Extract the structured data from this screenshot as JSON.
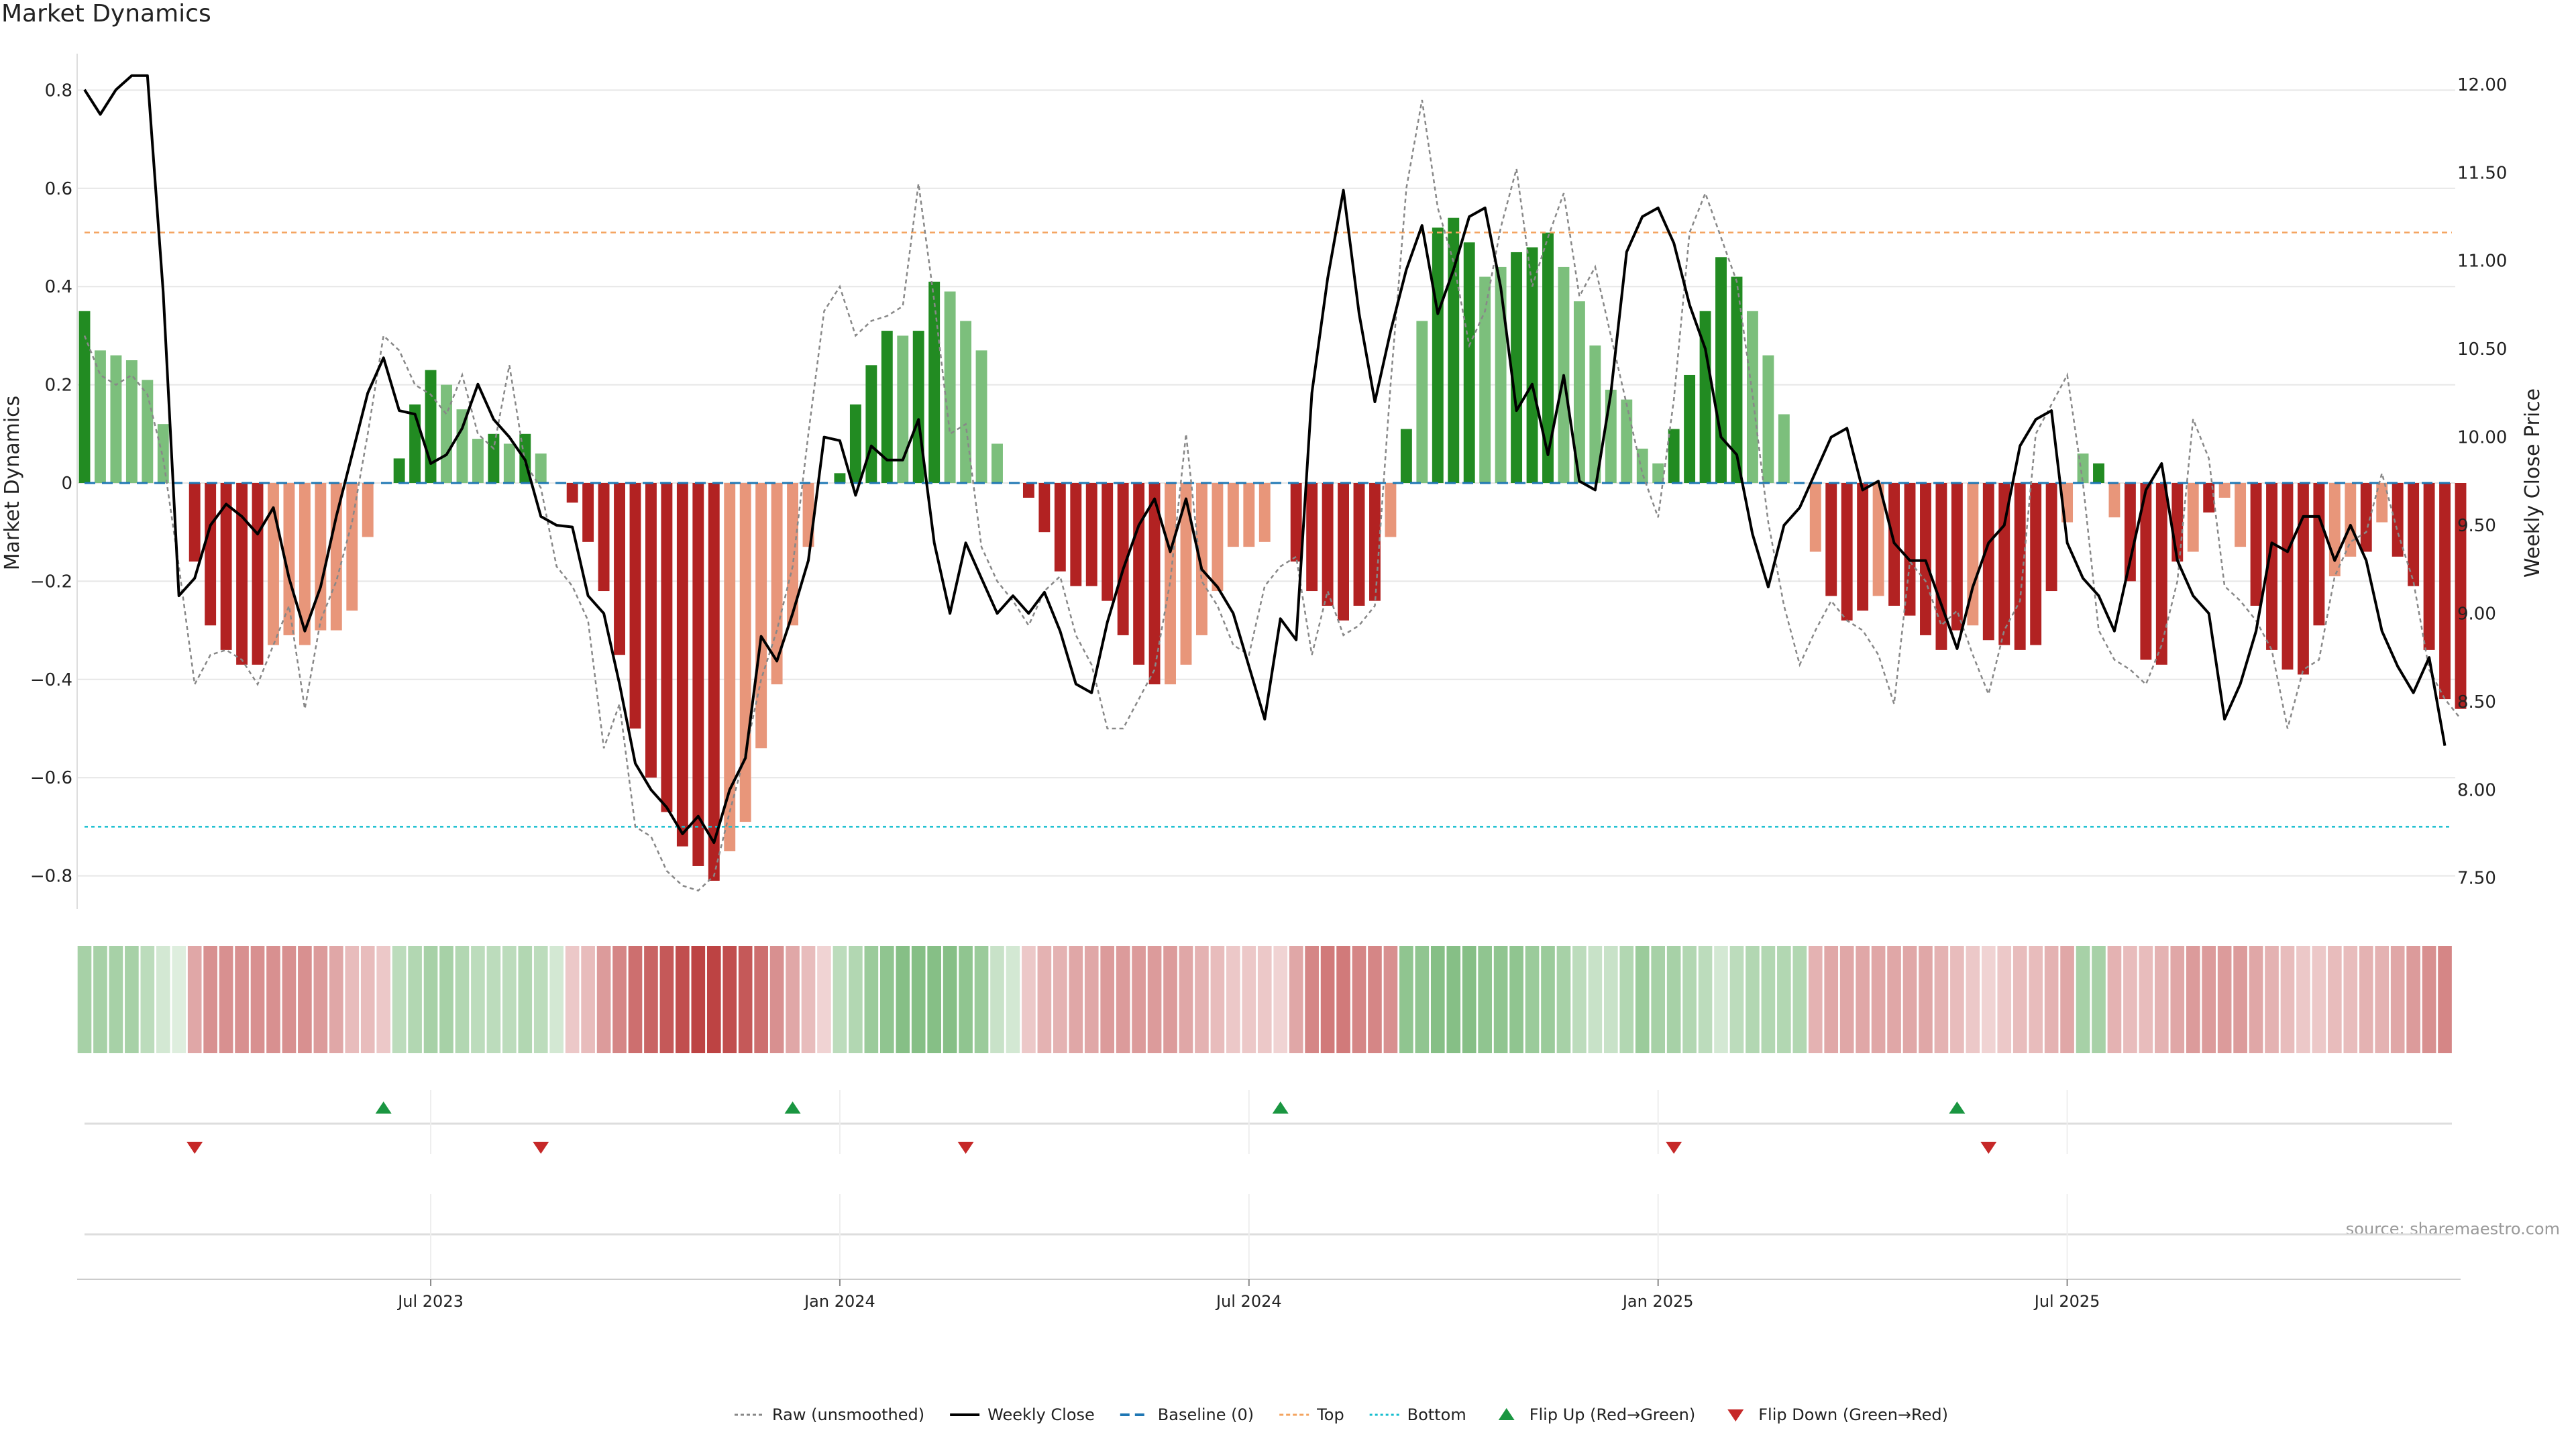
{
  "title": "Market Dynamics",
  "source": "source: sharemaestro.com",
  "colors": {
    "strong_green": "#228b22",
    "light_green": "#7cbf7c",
    "strong_red": "#b22222",
    "light_red": "#e8967a",
    "close_line": "#000000",
    "raw_line": "#888888",
    "baseline": "#1f77b4",
    "top": "#f4a460",
    "bottom": "#17becf",
    "flip_up": "#1a9641",
    "flip_down": "#c62828"
  },
  "chart_data": {
    "type": "bar",
    "title": "Market Dynamics",
    "ylabel": "Market Dynamics",
    "y2label": "Weekly Close Price",
    "ylim": [
      -0.88,
      0.88
    ],
    "y2lim": [
      7.4,
      12.3
    ],
    "yticks": [
      "0.8",
      "0.6",
      "0.4",
      "0.2",
      "0",
      "−0.2",
      "−0.4",
      "−0.6",
      "−0.8"
    ],
    "y2ticks": [
      "12.00",
      "11.50",
      "11.00",
      "10.50",
      "10.00",
      "9.50",
      "9.00",
      "8.50",
      "8.00",
      "7.50"
    ],
    "xticks": [
      "Jul 2023",
      "Jan 2024",
      "Jul 2024",
      "Jan 2025",
      "Jul 2025"
    ],
    "xtick_week_index": [
      22,
      48,
      74,
      100,
      126
    ],
    "grid": true,
    "levels": {
      "baseline": 0,
      "top": 0.51,
      "bottom": -0.7
    },
    "dynamics": [
      0.35,
      0.27,
      0.26,
      0.25,
      0.21,
      0.12,
      0,
      -0.16,
      -0.29,
      -0.34,
      -0.37,
      -0.37,
      -0.33,
      -0.31,
      -0.33,
      -0.3,
      -0.3,
      -0.26,
      -0.11,
      0,
      0.05,
      0.16,
      0.23,
      0.2,
      0.15,
      0.09,
      0.1,
      0.08,
      0.1,
      0.06,
      0,
      -0.04,
      -0.12,
      -0.22,
      -0.35,
      -0.5,
      -0.6,
      -0.67,
      -0.74,
      -0.78,
      -0.81,
      -0.75,
      -0.69,
      -0.54,
      -0.41,
      -0.29,
      -0.13,
      0,
      0.02,
      0.16,
      0.24,
      0.31,
      0.3,
      0.31,
      0.41,
      0.39,
      0.33,
      0.27,
      0.08,
      0,
      -0.03,
      -0.1,
      -0.18,
      -0.21,
      -0.21,
      -0.24,
      -0.31,
      -0.37,
      -0.41,
      -0.41,
      -0.37,
      -0.31,
      -0.22,
      -0.13,
      -0.13,
      -0.12,
      0,
      -0.16,
      -0.22,
      -0.25,
      -0.28,
      -0.25,
      -0.24,
      -0.11,
      0.11,
      0.33,
      0.52,
      0.54,
      0.49,
      0.42,
      0.44,
      0.47,
      0.48,
      0.51,
      0.44,
      0.37,
      0.28,
      0.19,
      0.17,
      0.07,
      0.04,
      0.11,
      0.22,
      0.35,
      0.46,
      0.42,
      0.35,
      0.26,
      0.14,
      0,
      -0.14,
      -0.23,
      -0.28,
      -0.26,
      -0.23,
      -0.25,
      -0.27,
      -0.31,
      -0.34,
      -0.3,
      -0.29,
      -0.32,
      -0.33,
      -0.34,
      -0.33,
      -0.22,
      -0.08,
      0.06,
      0.04,
      -0.07,
      -0.2,
      -0.36,
      -0.37,
      -0.16,
      -0.14,
      -0.06,
      -0.03,
      -0.13,
      -0.25,
      -0.34,
      -0.38,
      -0.39,
      -0.29,
      -0.19,
      -0.15,
      -0.14,
      -0.08,
      -0.15,
      -0.21,
      -0.34,
      -0.44,
      -0.46
    ],
    "dynamics_strong": [
      true,
      false,
      false,
      false,
      false,
      false,
      false,
      true,
      true,
      true,
      true,
      true,
      false,
      false,
      false,
      false,
      false,
      false,
      false,
      false,
      true,
      true,
      true,
      false,
      false,
      false,
      true,
      false,
      true,
      false,
      false,
      true,
      true,
      true,
      true,
      true,
      true,
      true,
      true,
      true,
      true,
      false,
      false,
      false,
      false,
      false,
      false,
      false,
      true,
      true,
      true,
      true,
      false,
      true,
      true,
      false,
      false,
      false,
      false,
      false,
      true,
      true,
      true,
      true,
      true,
      true,
      true,
      true,
      true,
      false,
      false,
      false,
      false,
      false,
      false,
      false,
      false,
      true,
      true,
      true,
      true,
      true,
      true,
      false,
      true,
      false,
      true,
      true,
      true,
      false,
      false,
      true,
      true,
      true,
      false,
      false,
      false,
      false,
      false,
      false,
      false,
      true,
      true,
      true,
      true,
      true,
      false,
      false,
      false,
      false,
      false,
      true,
      true,
      true,
      false,
      true,
      true,
      true,
      true,
      true,
      false,
      true,
      true,
      true,
      true,
      true,
      false,
      false,
      true,
      false,
      true,
      true,
      true,
      true,
      false,
      true,
      false,
      false,
      true,
      true,
      true,
      true,
      true,
      false,
      false,
      true,
      false,
      true,
      true,
      true,
      true,
      true
    ],
    "raw": [
      0.3,
      0.22,
      0.2,
      0.22,
      0.18,
      0.05,
      -0.17,
      -0.41,
      -0.35,
      -0.34,
      -0.36,
      -0.41,
      -0.33,
      -0.25,
      -0.46,
      -0.28,
      -0.2,
      -0.08,
      0.1,
      0.3,
      0.27,
      0.2,
      0.18,
      0.14,
      0.22,
      0.1,
      0.07,
      0.24,
      0.04,
      -0.01,
      -0.17,
      -0.21,
      -0.28,
      -0.54,
      -0.45,
      -0.7,
      -0.72,
      -0.79,
      -0.82,
      -0.83,
      -0.8,
      -0.67,
      -0.55,
      -0.4,
      -0.3,
      -0.17,
      0.1,
      0.35,
      0.4,
      0.3,
      0.33,
      0.34,
      0.36,
      0.61,
      0.37,
      0.1,
      0.12,
      -0.13,
      -0.2,
      -0.24,
      -0.29,
      -0.22,
      -0.19,
      -0.31,
      -0.37,
      -0.5,
      -0.5,
      -0.44,
      -0.38,
      -0.2,
      0.1,
      -0.2,
      -0.25,
      -0.33,
      -0.35,
      -0.21,
      -0.17,
      -0.15,
      -0.35,
      -0.22,
      -0.31,
      -0.29,
      -0.25,
      0.2,
      0.6,
      0.78,
      0.56,
      0.45,
      0.28,
      0.35,
      0.52,
      0.64,
      0.4,
      0.5,
      0.59,
      0.38,
      0.44,
      0.3,
      0.16,
      0.02,
      -0.07,
      0.17,
      0.51,
      0.59,
      0.5,
      0.41,
      0.18,
      -0.08,
      -0.25,
      -0.37,
      -0.3,
      -0.24,
      -0.28,
      -0.3,
      -0.35,
      -0.45,
      -0.16,
      -0.2,
      -0.29,
      -0.26,
      -0.35,
      -0.43,
      -0.3,
      -0.24,
      0.1,
      0.16,
      0.22,
      0.0,
      -0.3,
      -0.36,
      -0.38,
      -0.41,
      -0.33,
      -0.2,
      0.13,
      0.05,
      -0.21,
      -0.24,
      -0.28,
      -0.34,
      -0.5,
      -0.38,
      -0.36,
      -0.19,
      -0.12,
      -0.1,
      0.02,
      -0.1,
      -0.2,
      -0.38,
      -0.44,
      -0.48
    ],
    "weekly_close": [
      11.97,
      11.83,
      11.97,
      12.05,
      12.05,
      10.82,
      9.1,
      9.2,
      9.5,
      9.62,
      9.55,
      9.45,
      9.6,
      9.2,
      8.9,
      9.15,
      9.55,
      9.9,
      10.25,
      10.45,
      10.15,
      10.13,
      9.85,
      9.9,
      10.05,
      10.3,
      10.1,
      10.0,
      9.87,
      9.55,
      9.5,
      9.49,
      9.1,
      9.0,
      8.6,
      8.15,
      8.0,
      7.9,
      7.75,
      7.85,
      7.7,
      8.0,
      8.18,
      8.87,
      8.73,
      9.0,
      9.3,
      10.0,
      9.98,
      9.67,
      9.95,
      9.87,
      9.87,
      10.1,
      9.4,
      9.0,
      9.4,
      9.2,
      9.0,
      9.1,
      9.0,
      9.12,
      8.9,
      8.6,
      8.55,
      8.95,
      9.25,
      9.5,
      9.65,
      9.35,
      9.65,
      9.25,
      9.15,
      9.0,
      8.7,
      8.4,
      8.97,
      8.85,
      10.25,
      10.9,
      11.4,
      10.7,
      10.2,
      10.6,
      10.95,
      11.2,
      10.7,
      10.95,
      11.25,
      11.3,
      10.85,
      10.15,
      10.3,
      9.9,
      10.35,
      9.75,
      9.7,
      10.25,
      11.05,
      11.25,
      11.3,
      11.1,
      10.75,
      10.5,
      10.0,
      9.9,
      9.45,
      9.15,
      9.5,
      9.6,
      9.8,
      10.0,
      10.05,
      9.7,
      9.75,
      9.4,
      9.3,
      9.3,
      9.05,
      8.8,
      9.15,
      9.4,
      9.5,
      9.95,
      10.1,
      10.15,
      9.4,
      9.2,
      9.1,
      8.9,
      9.3,
      9.7,
      9.85,
      9.3,
      9.1,
      9.0,
      8.4,
      8.6,
      8.9,
      9.4,
      9.35,
      9.55,
      9.55,
      9.3,
      9.5,
      9.3,
      8.9,
      8.7,
      8.55,
      8.75,
      8.25
    ],
    "flip_up_week_index": [
      19,
      45,
      76,
      119
    ],
    "flip_down_week_index": [
      7,
      29,
      56,
      101,
      121
    ],
    "strength_shades": [
      0.4,
      0.4,
      0.4,
      0.4,
      0.3,
      0.2,
      0.15,
      0.4,
      0.5,
      0.5,
      0.5,
      0.5,
      0.5,
      0.5,
      0.5,
      0.45,
      0.4,
      0.3,
      0.3,
      0.25,
      0.3,
      0.35,
      0.4,
      0.4,
      0.35,
      0.3,
      0.3,
      0.3,
      0.35,
      0.3,
      0.2,
      0.25,
      0.3,
      0.45,
      0.55,
      0.65,
      0.7,
      0.75,
      0.8,
      0.85,
      0.85,
      0.8,
      0.75,
      0.65,
      0.5,
      0.4,
      0.3,
      0.2,
      0.3,
      0.35,
      0.45,
      0.5,
      0.55,
      0.55,
      0.55,
      0.55,
      0.5,
      0.45,
      0.25,
      0.2,
      0.25,
      0.35,
      0.35,
      0.4,
      0.4,
      0.45,
      0.45,
      0.45,
      0.45,
      0.45,
      0.4,
      0.35,
      0.3,
      0.25,
      0.25,
      0.25,
      0.2,
      0.4,
      0.55,
      0.6,
      0.6,
      0.55,
      0.55,
      0.5,
      0.5,
      0.5,
      0.55,
      0.55,
      0.55,
      0.5,
      0.5,
      0.5,
      0.45,
      0.45,
      0.4,
      0.3,
      0.25,
      0.25,
      0.35,
      0.45,
      0.4,
      0.4,
      0.35,
      0.3,
      0.2,
      0.3,
      0.35,
      0.35,
      0.35,
      0.35,
      0.35,
      0.4,
      0.4,
      0.4,
      0.4,
      0.4,
      0.4,
      0.4,
      0.35,
      0.3,
      0.25,
      0.2,
      0.25,
      0.3,
      0.3,
      0.35,
      0.4,
      0.4,
      0.4,
      0.35,
      0.3,
      0.3,
      0.35,
      0.4,
      0.45,
      0.45,
      0.45,
      0.45,
      0.4,
      0.35,
      0.3,
      0.25,
      0.25,
      0.3,
      0.3,
      0.35,
      0.35,
      0.4,
      0.45,
      0.5,
      0.55
    ],
    "legend": [
      {
        "key": "raw",
        "label": "Raw (unsmoothed)"
      },
      {
        "key": "close",
        "label": "Weekly Close"
      },
      {
        "key": "baseline",
        "label": "Baseline (0)"
      },
      {
        "key": "top",
        "label": "Top"
      },
      {
        "key": "bottom",
        "label": "Bottom"
      },
      {
        "key": "flip_up",
        "label": "Flip Up (Red→Green)"
      },
      {
        "key": "flip_down",
        "label": "Flip Down (Green→Red)"
      }
    ]
  }
}
